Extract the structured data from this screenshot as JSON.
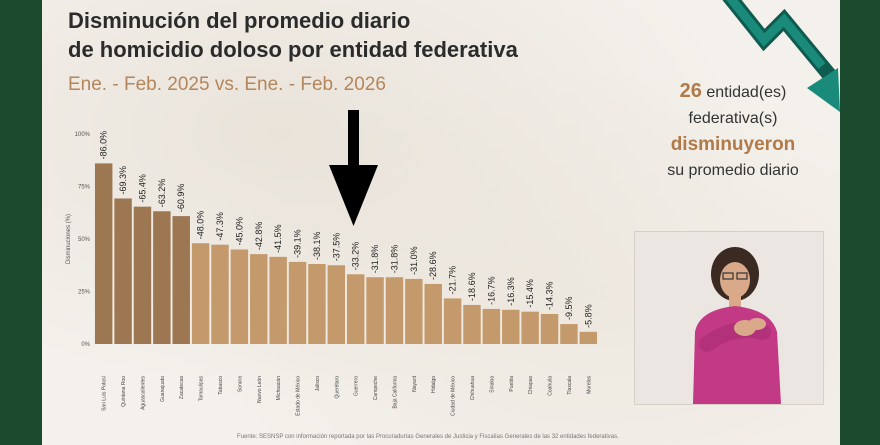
{
  "slide": {
    "title_line1": "Disminución del promedio diario",
    "title_line2": "de homicidio doloso por entidad federativa",
    "subtitle": "Ene. - Feb. 2025 vs. Ene. - Feb. 2026",
    "summary": {
      "count": "26",
      "text1": " entidad(es)",
      "text2": "federativa(s)",
      "emphasis": "disminuyeron",
      "text3": "su promedio diario"
    },
    "footnote": "Fuente: SESNSP con información reportada por las Procuradurías Generales de Justicia y Fiscalías Generales de las 32 entidades federativas."
  },
  "colors": {
    "dark_bar": "#9c7752",
    "light_bar": "#c49a6c",
    "frame": "#1b4a2e",
    "accent": "#b07a49",
    "trend_arrow": "#1a8a7a"
  },
  "icons": {
    "pointer": "down-arrow-icon",
    "trend": "downtrend-arrow-icon"
  },
  "chart_data": {
    "type": "bar",
    "title": "",
    "xlabel": "",
    "ylabel": "Disminuciones (%)",
    "ylim": [
      0,
      100
    ],
    "yticks": [
      "100%",
      "75%",
      "50%",
      "25%",
      "0%"
    ],
    "ytick_values": [
      100,
      75,
      50,
      25,
      0
    ],
    "highlighted_count": 5,
    "pointed_category": "Guerrero",
    "categories": [
      "San Luis Potosí",
      "Quintana Roo",
      "Aguascalientes",
      "Guanajuato",
      "Zacatecas",
      "Tamaulipas",
      "Tabasco",
      "Sonora",
      "Nuevo León",
      "Michoacán",
      "Estado de México",
      "Jalisco",
      "Querétaro",
      "Guerrero",
      "Campeche",
      "Baja California",
      "Nayarit",
      "Hidalgo",
      "Ciudad de México",
      "Chihuahua",
      "Sinaloa",
      "Puebla",
      "Chiapas",
      "Coahuila",
      "Tlaxcala",
      "Morelos"
    ],
    "values": [
      -86.0,
      -69.3,
      -65.4,
      -63.2,
      -60.9,
      -48.0,
      -47.3,
      -45.0,
      -42.8,
      -41.5,
      -39.1,
      -38.1,
      -37.5,
      -33.2,
      -31.8,
      -31.8,
      -31.0,
      -28.6,
      -21.7,
      -18.6,
      -16.7,
      -16.3,
      -15.4,
      -14.3,
      -9.5,
      -5.8
    ],
    "value_labels": [
      "-86.0%",
      "-69.3%",
      "-65.4%",
      "-63.2%",
      "-60.9%",
      "-48.0%",
      "-47.3%",
      "-45.0%",
      "-42.8%",
      "-41.5%",
      "-39.1%",
      "-38.1%",
      "-37.5%",
      "-33.2%",
      "-31.8%",
      "-31.8%",
      "-31.0%",
      "-28.6%",
      "-21.7%",
      "-18.6%",
      "-16.7%",
      "-16.3%",
      "-15.4%",
      "-14.3%",
      "-9.5%",
      "-5.8%"
    ]
  }
}
